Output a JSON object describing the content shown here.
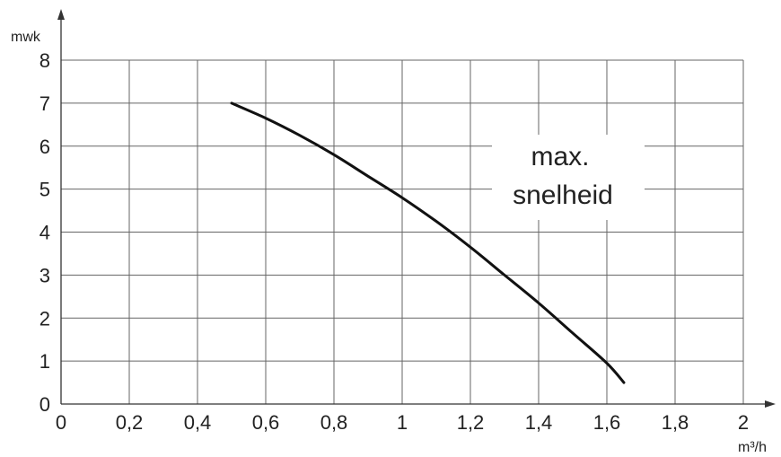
{
  "chart_data": {
    "type": "line",
    "title": "",
    "xlabel": "m³/h",
    "ylabel": "mwk",
    "xlim": [
      0,
      2
    ],
    "ylim": [
      0,
      8
    ],
    "grid": true,
    "x_ticks": [
      "0",
      "0,2",
      "0,4",
      "0,6",
      "0,8",
      "1",
      "1,2",
      "1,4",
      "1,6",
      "1,8",
      "2"
    ],
    "y_ticks": [
      "0",
      "1",
      "2",
      "3",
      "4",
      "5",
      "6",
      "7",
      "8"
    ],
    "series": [
      {
        "x": [
          0.5,
          0.6,
          0.7,
          0.8,
          0.9,
          1.0,
          1.1,
          1.2,
          1.3,
          1.4,
          1.5,
          1.6,
          1.65
        ],
        "y": [
          7.0,
          6.65,
          6.25,
          5.8,
          5.3,
          4.8,
          4.25,
          3.65,
          3.0,
          2.35,
          1.65,
          0.95,
          0.5
        ]
      }
    ],
    "annotation": {
      "line1": "max.",
      "line2": "snelheid"
    }
  }
}
